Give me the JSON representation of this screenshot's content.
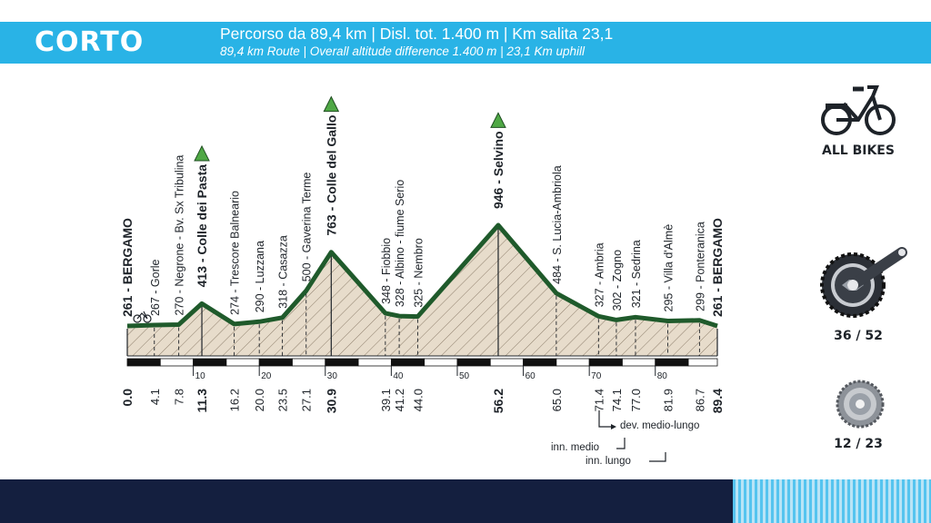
{
  "header": {
    "title": "CORTO",
    "line1": "Percorso da 89,4 km | Disl. tot. 1.400 m | Km salita 23,1",
    "line2": "89,4 km Route | Overall altitude difference 1.400 m | 23,1 Km uphill"
  },
  "colors": {
    "header_bg": "#29b3e6",
    "profile_line": "#1f5a2b",
    "profile_fill": "#e7dccb",
    "summit_marker": "#4fa845",
    "footer_bg": "#141f3f"
  },
  "chart_data": {
    "type": "area",
    "x_unit": "km",
    "y_unit": "m",
    "xlim": [
      0,
      89.4
    ],
    "x_ticks": [
      10,
      20,
      30,
      40,
      50,
      60,
      70,
      80
    ],
    "waypoints": [
      {
        "km": 0.0,
        "km_label": "0.0",
        "alt": 261,
        "label": "261 - BERGAMO",
        "major": true
      },
      {
        "km": 4.1,
        "km_label": "4.1",
        "alt": 267,
        "label": "267 - Gorle",
        "major": false
      },
      {
        "km": 7.8,
        "km_label": "7.8",
        "alt": 270,
        "label": "270 - Negrone - Bv. Sx Tribulina",
        "major": false
      },
      {
        "km": 11.3,
        "km_label": "11.3",
        "alt": 413,
        "label": "413 - Colle dei Pasta",
        "major": true,
        "summit": true
      },
      {
        "km": 16.2,
        "km_label": "16.2",
        "alt": 274,
        "label": "274 - Trescore Balneario",
        "major": false
      },
      {
        "km": 20.0,
        "km_label": "20.0",
        "alt": 290,
        "label": "290 - Luzzana",
        "major": false
      },
      {
        "km": 23.5,
        "km_label": "23.5",
        "alt": 318,
        "label": "318 - Casazza",
        "major": false
      },
      {
        "km": 27.1,
        "km_label": "27.1",
        "alt": 500,
        "label": "500 - Gaverina Terme",
        "major": false
      },
      {
        "km": 30.9,
        "km_label": "30.9",
        "alt": 763,
        "label": "763 - Colle del Gallo",
        "major": true,
        "summit": true
      },
      {
        "km": 39.1,
        "km_label": "39.1",
        "alt": 348,
        "label": "348 - Fiobbio",
        "major": false
      },
      {
        "km": 41.2,
        "km_label": "41.2",
        "alt": 328,
        "label": "328 - Albino - fiume Serio",
        "major": false
      },
      {
        "km": 44.0,
        "km_label": "44.0",
        "alt": 325,
        "label": "325 - Nembro",
        "major": false
      },
      {
        "km": 56.2,
        "km_label": "56.2",
        "alt": 946,
        "label": "946 - Selvino",
        "major": true,
        "summit": true
      },
      {
        "km": 65.0,
        "km_label": "65.0",
        "alt": 484,
        "label": "484 - S. Lucia-Ambriola",
        "major": false
      },
      {
        "km": 71.4,
        "km_label": "71.4",
        "alt": 327,
        "label": "327 - Ambria",
        "major": false
      },
      {
        "km": 74.1,
        "km_label": "74.1",
        "alt": 302,
        "label": "302 - Zogno",
        "major": false
      },
      {
        "km": 77.0,
        "km_label": "77.0",
        "alt": 321,
        "label": "321 - Sedrina",
        "major": false
      },
      {
        "km": 81.9,
        "km_label": "81.9",
        "alt": 295,
        "label": "295 - Villa d'Almè",
        "major": false
      },
      {
        "km": 86.7,
        "km_label": "86.7",
        "alt": 299,
        "label": "299 - Ponteranica",
        "major": false
      },
      {
        "km": 89.4,
        "km_label": "89.4",
        "alt": 261,
        "label": "261 - BERGAMO",
        "major": true
      }
    ]
  },
  "legend": {
    "dev_medio_lungo": "dev. medio-lungo",
    "inn_medio": "inn. medio",
    "inn_lungo": "inn. lungo"
  },
  "sidebar": {
    "bike_label": "ALL BIKES",
    "chainring_label": "36 / 52",
    "cassette_label": "12 / 23"
  }
}
